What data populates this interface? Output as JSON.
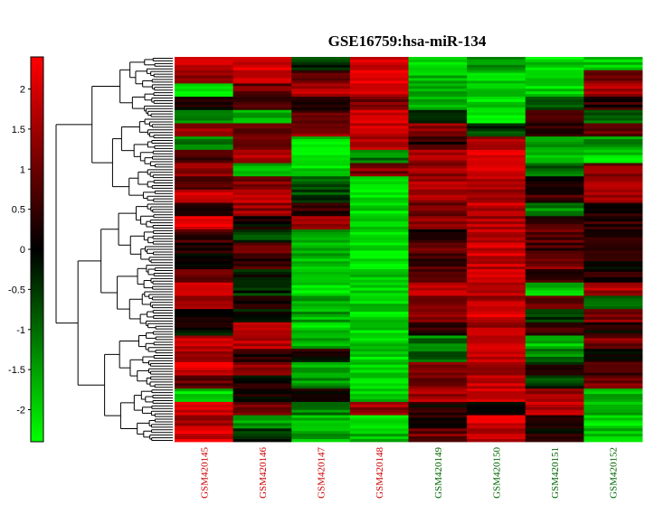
{
  "chart_data": {
    "type": "heatmap",
    "title": "GSE16759:hsa-miR-134",
    "colorbar": {
      "ticks": [
        "2",
        "1.5",
        "1",
        "0.5",
        "0",
        "-0.5",
        "-1",
        "-1.5",
        "-2"
      ],
      "tick_values": [
        2,
        1.5,
        1,
        0.5,
        0,
        -0.5,
        -1,
        -1.5,
        -2
      ],
      "range": [
        -2.4,
        2.4
      ],
      "low_color": "#00ff00",
      "mid_color": "#000000",
      "high_color": "#ff0000"
    },
    "columns": [
      {
        "label": "GSM420145",
        "group_color": "#cc0000"
      },
      {
        "label": "GSM420146",
        "group_color": "#cc0000"
      },
      {
        "label": "GSM420147",
        "group_color": "#cc0000"
      },
      {
        "label": "GSM420148",
        "group_color": "#cc0000"
      },
      {
        "label": "GSM420149",
        "group_color": "#006600"
      },
      {
        "label": "GSM420150",
        "group_color": "#006600"
      },
      {
        "label": "GSM420151",
        "group_color": "#006600"
      },
      {
        "label": "GSM420152",
        "group_color": "#006600"
      }
    ],
    "row_blocks": [
      [
        2.0,
        2.0,
        -0.5,
        2.0,
        -2.0,
        -1.2,
        -2.0,
        -2.0
      ],
      [
        1.5,
        1.8,
        0.8,
        2.0,
        -1.8,
        -2.0,
        -2.0,
        1.2
      ],
      [
        -2.0,
        1.0,
        1.8,
        2.0,
        -1.5,
        -2.0,
        -2.0,
        1.5
      ],
      [
        0.2,
        0.8,
        0.6,
        1.2,
        -1.5,
        -2.0,
        -0.6,
        0.4
      ],
      [
        -1.2,
        -1.8,
        0.8,
        1.8,
        -0.4,
        -2.2,
        0.4,
        -1.0
      ],
      [
        1.4,
        1.0,
        1.2,
        2.0,
        1.2,
        -0.5,
        0.6,
        1.0
      ],
      [
        -1.2,
        1.0,
        -2.0,
        1.8,
        0.4,
        1.4,
        -1.5,
        -1.5
      ],
      [
        0.8,
        1.6,
        -2.0,
        -1.2,
        1.5,
        2.0,
        -1.8,
        -2.0
      ],
      [
        1.5,
        -1.5,
        -2.0,
        1.2,
        1.5,
        2.0,
        -1.0,
        1.2
      ],
      [
        1.0,
        1.2,
        -0.8,
        -2.0,
        1.6,
        1.6,
        0.4,
        1.5
      ],
      [
        2.0,
        1.8,
        -0.6,
        -2.0,
        1.4,
        1.4,
        0.6,
        1.5
      ],
      [
        0.5,
        1.4,
        0.6,
        -2.0,
        1.2,
        1.8,
        -1.2,
        0.4
      ],
      [
        2.0,
        0.2,
        1.4,
        -2.0,
        1.2,
        1.6,
        0.6,
        0.4
      ],
      [
        0.6,
        -0.6,
        -1.4,
        -2.0,
        0.4,
        1.8,
        0.8,
        0.5
      ],
      [
        0.2,
        0.8,
        -1.6,
        -2.0,
        0.8,
        2.0,
        0.6,
        0.2
      ],
      [
        0.0,
        0.6,
        -1.8,
        -2.0,
        0.6,
        1.8,
        1.2,
        0.2
      ],
      [
        1.2,
        -0.2,
        -2.0,
        -2.0,
        0.6,
        1.8,
        0.6,
        0.4
      ],
      [
        1.8,
        -0.4,
        -2.0,
        -2.0,
        1.6,
        1.8,
        -1.8,
        1.6
      ],
      [
        1.5,
        0.3,
        -1.4,
        -2.0,
        1.2,
        1.6,
        0.8,
        -0.8
      ],
      [
        0.0,
        -0.2,
        -1.6,
        -2.0,
        1.4,
        2.0,
        -0.4,
        1.2
      ],
      [
        0.0,
        1.6,
        -2.0,
        -2.0,
        0.4,
        1.6,
        0.6,
        0.2
      ],
      [
        1.8,
        1.8,
        -1.5,
        -2.0,
        -1.2,
        1.8,
        -1.8,
        1.2
      ],
      [
        1.6,
        0.5,
        0.2,
        -2.0,
        -1.0,
        1.8,
        -1.2,
        0.2
      ],
      [
        2.0,
        1.4,
        -1.6,
        -2.0,
        1.0,
        1.6,
        0.0,
        0.6
      ],
      [
        0.8,
        0.2,
        -1.4,
        -2.0,
        1.2,
        1.8,
        -0.6,
        1.2
      ],
      [
        -2.0,
        0.3,
        0.2,
        -1.8,
        1.5,
        2.0,
        1.5,
        -1.8
      ],
      [
        2.0,
        1.2,
        -1.2,
        1.5,
        0.2,
        -0.2,
        1.8,
        -1.8
      ],
      [
        1.6,
        -1.5,
        -1.8,
        -2.0,
        0.4,
        2.0,
        0.6,
        -2.0
      ],
      [
        2.0,
        -0.4,
        -1.6,
        -1.8,
        1.0,
        1.8,
        0.2,
        -1.8
      ]
    ]
  }
}
